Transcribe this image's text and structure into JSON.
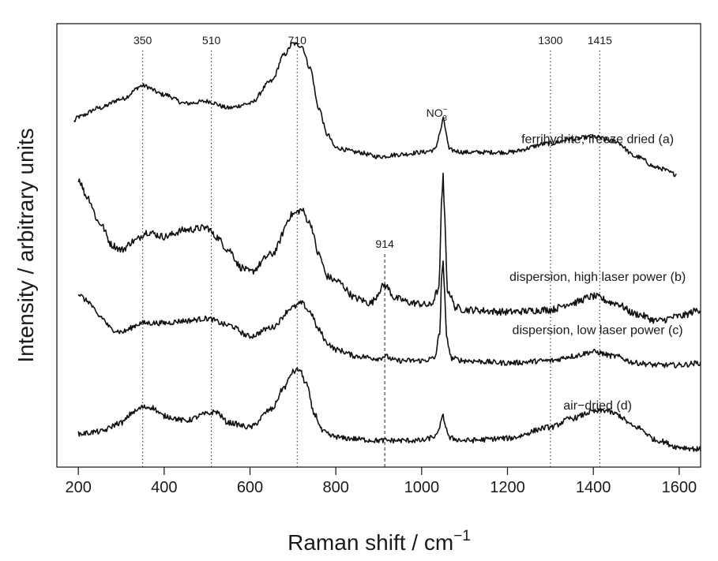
{
  "chart_data": {
    "type": "line",
    "title": "",
    "xlabel": "Raman shift / cm",
    "xlabel_superscript": "−1",
    "ylabel": "Intensity / arbitrary units",
    "xlim": [
      150,
      1650
    ],
    "ylim": [
      0,
      100
    ],
    "x_ticks": [
      200,
      400,
      600,
      800,
      1000,
      1200,
      1400,
      1600
    ],
    "y_ticks_shown": false,
    "grid": false,
    "legend": "none",
    "line_color": "#111111",
    "reference_lines": [
      {
        "x": 350,
        "label": "350",
        "style": "dotted"
      },
      {
        "x": 510,
        "label": "510",
        "style": "dotted"
      },
      {
        "x": 710,
        "label": "710",
        "style": "dotted"
      },
      {
        "x": 914,
        "label": "914",
        "style": "dashed"
      },
      {
        "x": 1300,
        "label": "1300",
        "style": "dotted"
      },
      {
        "x": 1415,
        "label": "1415",
        "style": "dotted"
      }
    ],
    "annotations": [
      {
        "x": 1050,
        "y": 79,
        "text": "NO",
        "subscript": "3",
        "superscript": "−"
      }
    ],
    "series": [
      {
        "name": "ferrihydrite, freeze dried (a)",
        "label_x": 1410,
        "label_y": 73,
        "noise": 0.5,
        "x": [
          190,
          200,
          250,
          300,
          350,
          400,
          450,
          500,
          550,
          600,
          650,
          680,
          700,
          720,
          740,
          760,
          780,
          800,
          850,
          900,
          950,
          1000,
          1030,
          1045,
          1050,
          1055,
          1065,
          1100,
          1200,
          1300,
          1350,
          1400,
          1450,
          1500,
          1550,
          1595
        ],
        "values": [
          78,
          79,
          81,
          83,
          86,
          84,
          82,
          82.5,
          81,
          82,
          87,
          93,
          95.5,
          95,
          90,
          81,
          75,
          72,
          71,
          70,
          70.5,
          71,
          71.5,
          76,
          79,
          76,
          71.5,
          71,
          71,
          73,
          74,
          74.5,
          73.5,
          70,
          67.5,
          66
        ]
      },
      {
        "name": "dispersion, high laser power (b)",
        "label_x": 1410,
        "label_y": 42,
        "noise": 0.8,
        "x": [
          200,
          220,
          250,
          280,
          300,
          330,
          360,
          400,
          450,
          500,
          520,
          550,
          580,
          600,
          650,
          700,
          720,
          740,
          760,
          780,
          800,
          850,
          880,
          914,
          940,
          980,
          1020,
          1040,
          1047,
          1050,
          1053,
          1060,
          1080,
          1100,
          1200,
          1300,
          1350,
          1400,
          1450,
          1500,
          1550,
          1600,
          1650
        ],
        "values": [
          65,
          61,
          55,
          50,
          49,
          51,
          53,
          52,
          53.5,
          54,
          52,
          49,
          45,
          44,
          48,
          57,
          58,
          55,
          48,
          43,
          42,
          38,
          37,
          41,
          38,
          37,
          36.5,
          40,
          60,
          66,
          58,
          40,
          36,
          35.5,
          35,
          35.5,
          37,
          38.5,
          37,
          34.5,
          33,
          34,
          35.5
        ]
      },
      {
        "name": "dispersion, low laser power (c)",
        "label_x": 1410,
        "label_y": 30,
        "noise": 0.6,
        "x": [
          200,
          220,
          250,
          280,
          300,
          350,
          400,
          450,
          500,
          550,
          600,
          650,
          700,
          720,
          740,
          760,
          780,
          800,
          850,
          900,
          914,
          940,
          1000,
          1030,
          1042,
          1047,
          1050,
          1053,
          1058,
          1070,
          1100,
          1200,
          1300,
          1350,
          1400,
          1450,
          1500,
          1550,
          1600,
          1650
        ],
        "values": [
          39,
          37.5,
          34,
          31,
          30.5,
          32.5,
          32.5,
          33,
          33.5,
          32,
          29.5,
          31.5,
          36,
          37,
          35,
          31,
          28,
          26.5,
          25,
          24.5,
          25,
          24,
          24,
          24.5,
          30,
          44,
          46,
          40,
          29,
          24.5,
          24,
          23.5,
          24,
          25,
          26,
          25,
          23.5,
          23,
          23,
          23.5
        ]
      },
      {
        "name": "air−dried (d)",
        "label_x": 1410,
        "label_y": 13,
        "noise": 0.6,
        "x": [
          200,
          250,
          300,
          330,
          350,
          370,
          400,
          450,
          500,
          520,
          550,
          600,
          650,
          680,
          700,
          715,
          730,
          750,
          770,
          790,
          820,
          900,
          1000,
          1035,
          1045,
          1050,
          1055,
          1065,
          1100,
          1200,
          1300,
          1350,
          1400,
          1430,
          1450,
          1500,
          1550,
          1600,
          1650
        ],
        "values": [
          7.5,
          8,
          10,
          12.5,
          13.5,
          13.5,
          11.5,
          10.5,
          12,
          12.5,
          10,
          9,
          13,
          18,
          21.5,
          22,
          19,
          12,
          8,
          7,
          6.5,
          6,
          6,
          7,
          10,
          11.5,
          9.5,
          6.5,
          6,
          6.5,
          9,
          11,
          12.5,
          12.8,
          12,
          9,
          6,
          4.5,
          4
        ]
      }
    ]
  }
}
